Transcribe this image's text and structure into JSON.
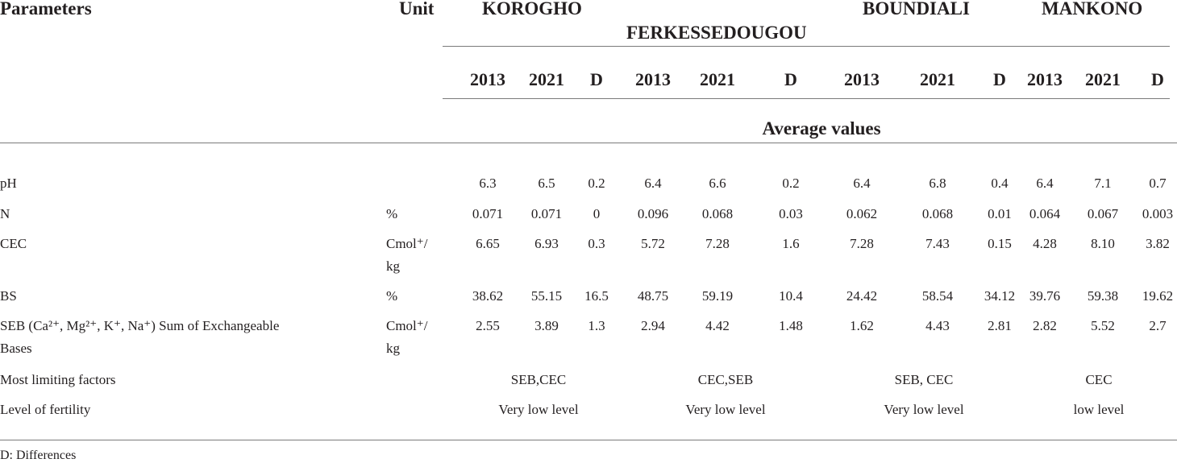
{
  "table": {
    "header": {
      "parameters": "Parameters",
      "unit": "Unit",
      "regions": [
        "KOROGHO",
        "FERKESSEDOUGOU",
        "BOUNDIALI",
        "MANKONO"
      ],
      "sub_columns": [
        "2013",
        "2021",
        "D",
        "2013",
        "2021",
        "D",
        "2013",
        "2021",
        "D",
        "2013",
        "2021",
        "D"
      ],
      "average_values": "Average values"
    },
    "rows": [
      {
        "param": "pH",
        "param2": "",
        "unit": "",
        "unit2": "",
        "values": [
          "6.3",
          "6.5",
          "0.2",
          "6.4",
          "6.6",
          "0.2",
          "6.4",
          "6.8",
          "0.4",
          "6.4",
          "7.1",
          "0.7"
        ]
      },
      {
        "param": "N",
        "param2": "",
        "unit": "%",
        "unit2": "",
        "values": [
          "0.071",
          "0.071",
          "0",
          "0.096",
          "0.068",
          "0.03",
          "0.062",
          "0.068",
          "0.01",
          "0.064",
          "0.067",
          "0.003"
        ]
      },
      {
        "param": "CEC",
        "param2": "",
        "unit": "Cmol⁺/",
        "unit2": "kg",
        "values": [
          "6.65",
          "6.93",
          "0.3",
          "5.72",
          "7.28",
          "1.6",
          "7.28",
          "7.43",
          "0.15",
          "4.28",
          "8.10",
          "3.82"
        ]
      },
      {
        "param": "BS",
        "param2": "",
        "unit": "%",
        "unit2": "",
        "values": [
          "38.62",
          "55.15",
          "16.5",
          "48.75",
          "59.19",
          "10.4",
          "24.42",
          "58.54",
          "34.12",
          "39.76",
          "59.38",
          "19.62"
        ]
      },
      {
        "param": "SEB (Ca²⁺, Mg²⁺, K⁺, Na⁺) Sum of Exchangeable",
        "param2": "Bases",
        "unit": "Cmol⁺/",
        "unit2": "kg",
        "values": [
          "2.55",
          "3.89",
          "1.3",
          "2.94",
          "4.42",
          "1.48",
          "1.62",
          "4.43",
          "2.81",
          "2.82",
          "5.52",
          "2.7"
        ]
      }
    ],
    "limiting": {
      "label": "Most limiting factors",
      "values": [
        "SEB,CEC",
        "CEC,SEB",
        "SEB, CEC",
        "CEC"
      ]
    },
    "fertility": {
      "label": "Level of fertility",
      "values": [
        "Very low level",
        "Very low level",
        "Very low level",
        "low level"
      ]
    }
  },
  "footnote": "D: Differences"
}
